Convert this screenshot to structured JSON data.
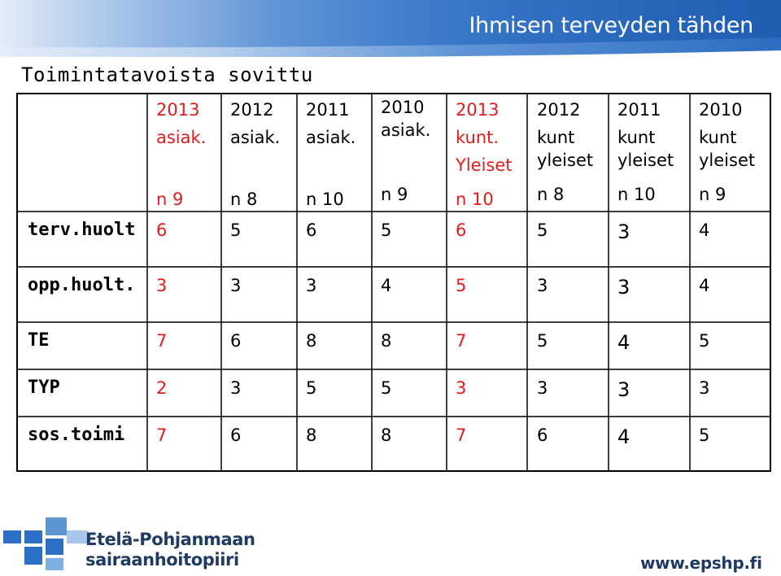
{
  "banner": {
    "text": "Ihmisen terveyden tähden"
  },
  "title": "Toimintatavoista  sovittu",
  "columns": [
    {
      "line1": "2013",
      "line2": "asiak.",
      "line3": "",
      "n": "n 9",
      "red": true
    },
    {
      "line1": "2012",
      "line2": "asiak.",
      "line3": "",
      "n": "n 8",
      "red": false
    },
    {
      "line1": "2011",
      "line2": "asiak.",
      "line3": "",
      "n": "n 10",
      "red": false
    },
    {
      "line1": "2010",
      "line2": "asiak.",
      "line3": "",
      "n": "n 9",
      "red": false
    },
    {
      "line1": "2013",
      "line2": "kunt.",
      "line3": "Yleiset",
      "n": "n 10",
      "red": true
    },
    {
      "line1": "2012",
      "line2": "kunt",
      "line3": "yleiset",
      "n": "n 8",
      "red": false
    },
    {
      "line1": "2011",
      "line2": "kunt",
      "line3": "yleiset",
      "n": "n 10",
      "red": false
    },
    {
      "line1": "2010",
      "line2": "kunt",
      "line3": "yleiset",
      "n": "n 9",
      "red": false
    }
  ],
  "rows": [
    {
      "label": "terv.huolt",
      "values": [
        "6",
        "5",
        "6",
        "5",
        "6",
        "5",
        "3",
        "4"
      ]
    },
    {
      "label": "opp.huolt.",
      "values": [
        "3",
        "3",
        "3",
        "4",
        "5",
        "3",
        "3",
        "4"
      ]
    },
    {
      "label": "TE",
      "values": [
        "7",
        "6",
        "8",
        "8",
        "7",
        "5",
        "4",
        "5"
      ]
    },
    {
      "label": "TYP",
      "values": [
        "2",
        "3",
        "5",
        "5",
        "3",
        "3",
        "3",
        "3"
      ]
    },
    {
      "label": "sos.toimi",
      "values": [
        "7",
        "6",
        "8",
        "8",
        "7",
        "6",
        "4",
        "5"
      ]
    }
  ],
  "footer": {
    "org_line1": "Etelä-Pohjanmaan",
    "org_line2": "sairaanhoitopiiri",
    "url": "www.epshp.fi"
  },
  "colors": {
    "banner_blue": "#2d6fc4",
    "text_red": "#e41b1b",
    "org_navy": "#1f3a63"
  }
}
